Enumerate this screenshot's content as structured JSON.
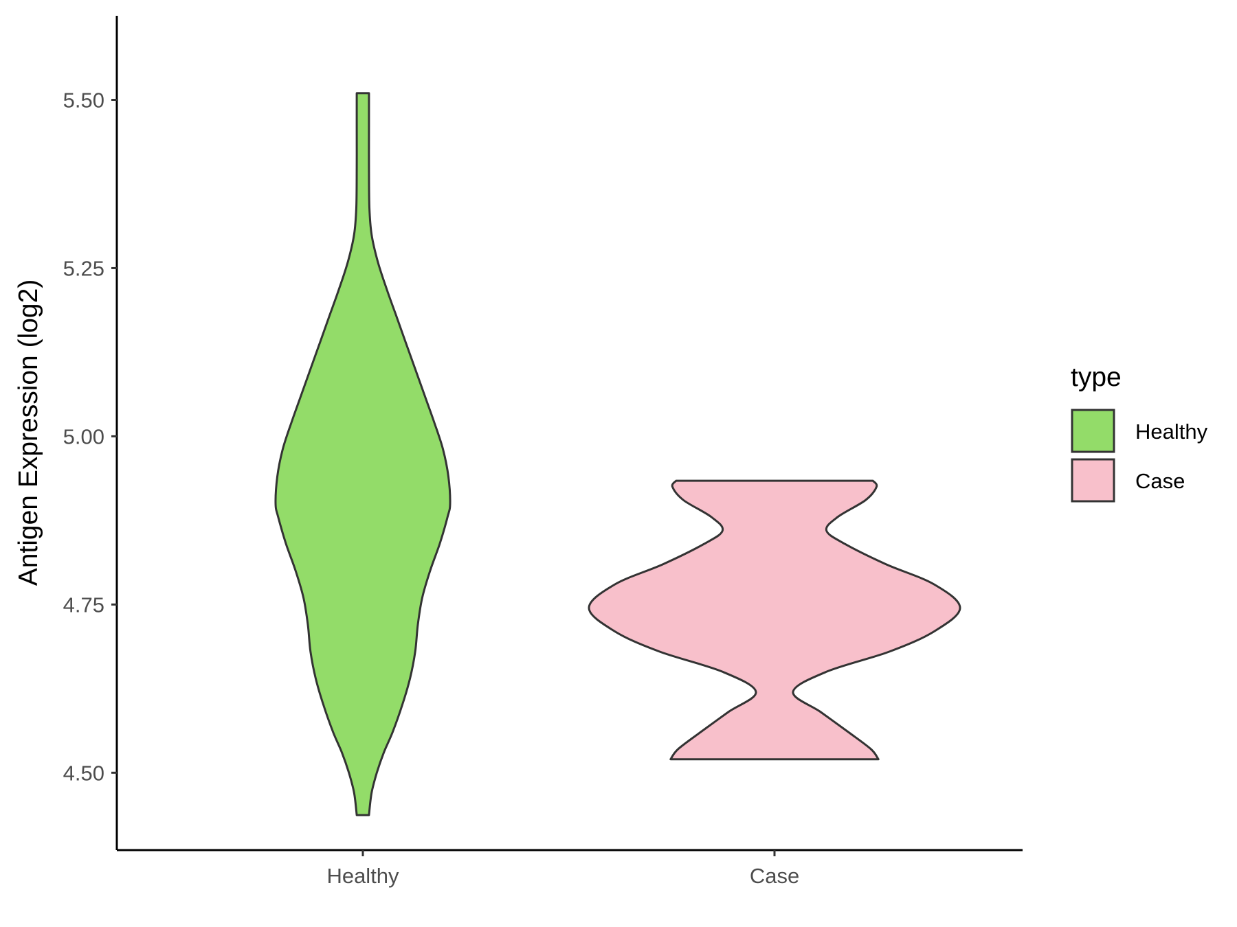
{
  "chart_data": {
    "type": "violin",
    "xlabel": "",
    "ylabel": "Antigen Expression (log2)",
    "ylim": [
      4.385,
      5.625
    ],
    "yticks": [
      "4.50",
      "4.75",
      "5.00",
      "5.25",
      "5.50"
    ],
    "categories": [
      "Healthy",
      "Case"
    ],
    "legend": {
      "title": "type",
      "position": "right",
      "entries": [
        "Healthy",
        "Case"
      ]
    },
    "grid": false,
    "series": [
      {
        "name": "Healthy",
        "color": "#93dc69",
        "min": 4.437,
        "max": 5.51,
        "density": [
          {
            "y": 4.437,
            "w": 0.07
          },
          {
            "y": 4.47,
            "w": 0.1
          },
          {
            "y": 4.5,
            "w": 0.16
          },
          {
            "y": 4.53,
            "w": 0.24
          },
          {
            "y": 4.56,
            "w": 0.34
          },
          {
            "y": 4.6,
            "w": 0.45
          },
          {
            "y": 4.64,
            "w": 0.54
          },
          {
            "y": 4.68,
            "w": 0.6
          },
          {
            "y": 4.72,
            "w": 0.63
          },
          {
            "y": 4.76,
            "w": 0.68
          },
          {
            "y": 4.8,
            "w": 0.77
          },
          {
            "y": 4.84,
            "w": 0.88
          },
          {
            "y": 4.88,
            "w": 0.97
          },
          {
            "y": 4.9,
            "w": 1.0
          },
          {
            "y": 4.94,
            "w": 0.98
          },
          {
            "y": 4.98,
            "w": 0.92
          },
          {
            "y": 5.02,
            "w": 0.82
          },
          {
            "y": 5.06,
            "w": 0.71
          },
          {
            "y": 5.1,
            "w": 0.6
          },
          {
            "y": 5.14,
            "w": 0.49
          },
          {
            "y": 5.18,
            "w": 0.38
          },
          {
            "y": 5.22,
            "w": 0.27
          },
          {
            "y": 5.26,
            "w": 0.17
          },
          {
            "y": 5.3,
            "w": 0.1
          },
          {
            "y": 5.34,
            "w": 0.075
          },
          {
            "y": 5.4,
            "w": 0.07
          },
          {
            "y": 5.46,
            "w": 0.07
          },
          {
            "y": 5.51,
            "w": 0.07
          }
        ]
      },
      {
        "name": "Case",
        "color": "#f8c0cb",
        "min": 4.52,
        "max": 4.934,
        "density": [
          {
            "y": 4.52,
            "w": 0.56
          },
          {
            "y": 4.535,
            "w": 0.52
          },
          {
            "y": 4.56,
            "w": 0.4
          },
          {
            "y": 4.59,
            "w": 0.25
          },
          {
            "y": 4.62,
            "w": 0.1
          },
          {
            "y": 4.65,
            "w": 0.28
          },
          {
            "y": 4.68,
            "w": 0.62
          },
          {
            "y": 4.71,
            "w": 0.86
          },
          {
            "y": 4.745,
            "w": 1.0
          },
          {
            "y": 4.78,
            "w": 0.86
          },
          {
            "y": 4.81,
            "w": 0.6
          },
          {
            "y": 4.84,
            "w": 0.38
          },
          {
            "y": 4.86,
            "w": 0.28
          },
          {
            "y": 4.88,
            "w": 0.34
          },
          {
            "y": 4.905,
            "w": 0.49
          },
          {
            "y": 4.925,
            "w": 0.55
          },
          {
            "y": 4.934,
            "w": 0.53
          }
        ]
      }
    ]
  }
}
